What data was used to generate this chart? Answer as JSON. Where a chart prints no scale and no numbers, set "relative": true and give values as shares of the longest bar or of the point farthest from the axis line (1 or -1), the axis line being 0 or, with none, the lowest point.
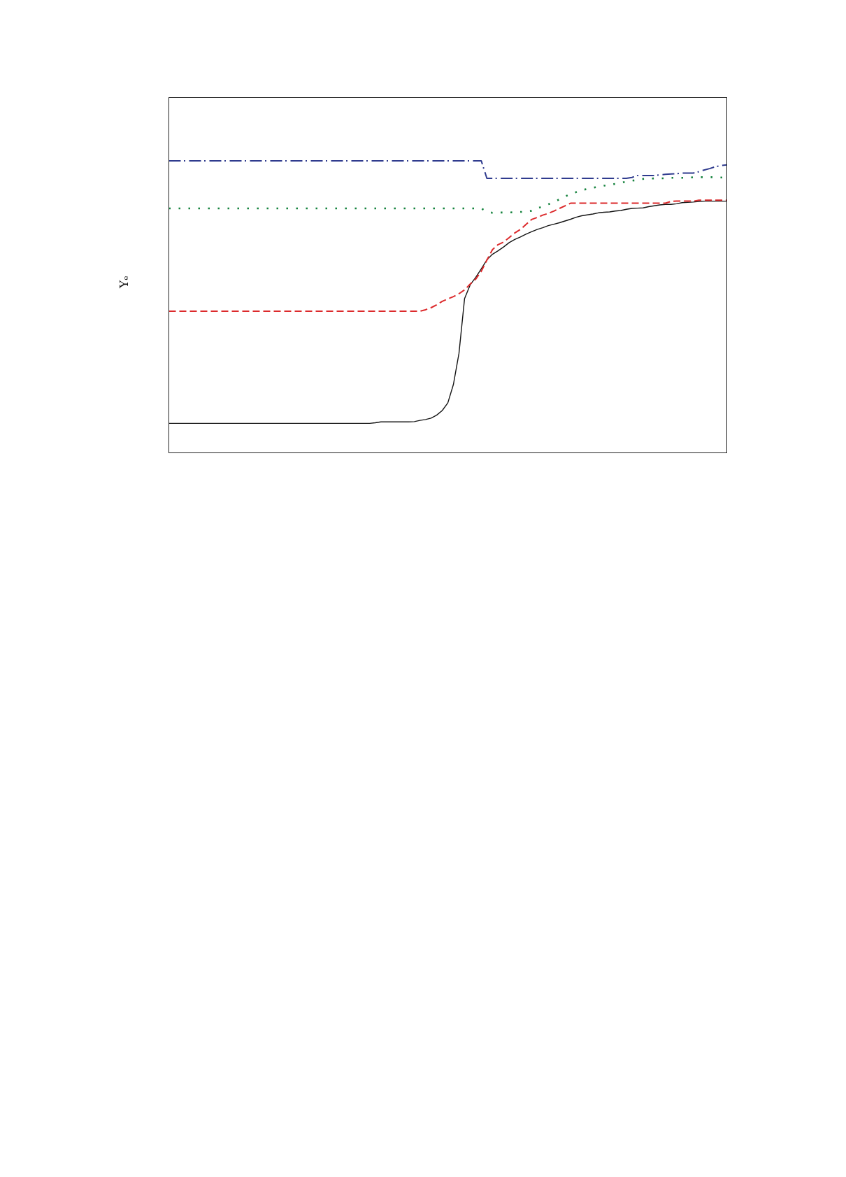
{
  "chart_data": {
    "type": "line",
    "relative": true,
    "ylabel": "Yₑ",
    "categories": [
      null,
      null,
      null,
      null,
      null,
      null,
      null,
      null,
      null,
      null,
      null,
      null,
      null,
      null,
      null,
      null,
      null,
      null,
      null,
      null,
      null,
      null,
      null,
      null,
      null,
      null,
      null,
      null,
      null,
      null,
      null,
      null,
      null,
      null,
      null,
      null,
      null,
      null,
      null,
      null,
      null,
      null,
      null,
      null,
      null,
      null,
      null,
      null,
      null,
      null,
      null,
      null,
      null,
      null,
      null,
      null,
      null,
      null,
      null,
      null,
      null,
      null,
      null,
      null,
      null,
      null,
      null,
      null,
      null,
      null,
      null,
      null,
      null,
      null,
      null,
      null,
      null,
      null,
      null,
      null,
      null,
      null,
      null,
      null,
      null,
      null,
      null,
      null,
      null,
      null,
      null,
      null,
      null,
      null,
      null,
      null,
      null,
      null,
      null,
      null,
      null
    ],
    "series": [
      {
        "color": "#151515",
        "line_style": "solid",
        "values": [
          0.101,
          0.101,
          0.101,
          0.101,
          0.101,
          0.101,
          0.101,
          0.101,
          0.101,
          0.101,
          0.101,
          0.101,
          0.101,
          0.101,
          0.101,
          0.101,
          0.101,
          0.101,
          0.101,
          0.101,
          0.101,
          0.101,
          0.101,
          0.101,
          0.101,
          0.101,
          0.101,
          0.101,
          0.101,
          0.101,
          0.101,
          0.101,
          0.101,
          0.101,
          0.101,
          0.101,
          0.101,
          0.103,
          0.106,
          0.106,
          0.106,
          0.106,
          0.106,
          0.106,
          0.107,
          0.111,
          0.114,
          0.119,
          0.129,
          0.145,
          0.171,
          0.234,
          0.341,
          0.528,
          0.575,
          0.601,
          0.63,
          0.661,
          0.68,
          0.692,
          0.705,
          0.72,
          0.731,
          0.739,
          0.749,
          0.757,
          0.765,
          0.771,
          0.778,
          0.783,
          0.788,
          0.794,
          0.8,
          0.807,
          0.812,
          0.815,
          0.818,
          0.822,
          0.824,
          0.825,
          0.828,
          0.83,
          0.834,
          0.837,
          0.838,
          0.839,
          0.843,
          0.846,
          0.849,
          0.851,
          0.851,
          0.853,
          0.857,
          0.858,
          0.859,
          0.861,
          0.862,
          0.862,
          0.862,
          0.862,
          0.862
        ]
      },
      {
        "color": "#dc2a2c",
        "line_style": "dashed",
        "values": [
          0.485,
          0.485,
          0.485,
          0.485,
          0.485,
          0.485,
          0.485,
          0.485,
          0.485,
          0.485,
          0.485,
          0.485,
          0.485,
          0.485,
          0.485,
          0.485,
          0.485,
          0.485,
          0.485,
          0.485,
          0.485,
          0.485,
          0.485,
          0.485,
          0.485,
          0.485,
          0.485,
          0.485,
          0.485,
          0.485,
          0.485,
          0.485,
          0.485,
          0.485,
          0.485,
          0.485,
          0.485,
          0.485,
          0.485,
          0.485,
          0.485,
          0.485,
          0.485,
          0.485,
          0.485,
          0.485,
          0.49,
          0.497,
          0.507,
          0.519,
          0.527,
          0.535,
          0.545,
          0.558,
          0.578,
          0.595,
          0.622,
          0.66,
          0.696,
          0.713,
          0.722,
          0.737,
          0.753,
          0.765,
          0.782,
          0.799,
          0.806,
          0.814,
          0.82,
          0.828,
          0.837,
          0.846,
          0.855,
          0.855,
          0.855,
          0.855,
          0.855,
          0.855,
          0.855,
          0.855,
          0.855,
          0.855,
          0.855,
          0.855,
          0.855,
          0.855,
          0.855,
          0.855,
          0.855,
          0.855,
          0.861,
          0.862,
          0.862,
          0.862,
          0.862,
          0.865,
          0.865,
          0.865,
          0.865,
          0.865,
          0.865
        ]
      },
      {
        "color": "#17843f",
        "line_style": "dotted",
        "values": [
          0.837,
          0.837,
          0.837,
          0.837,
          0.837,
          0.837,
          0.837,
          0.837,
          0.837,
          0.837,
          0.837,
          0.837,
          0.837,
          0.837,
          0.837,
          0.837,
          0.837,
          0.837,
          0.837,
          0.837,
          0.837,
          0.837,
          0.837,
          0.837,
          0.837,
          0.837,
          0.837,
          0.837,
          0.837,
          0.837,
          0.837,
          0.837,
          0.837,
          0.837,
          0.837,
          0.837,
          0.837,
          0.837,
          0.837,
          0.837,
          0.837,
          0.837,
          0.837,
          0.837,
          0.837,
          0.837,
          0.837,
          0.837,
          0.837,
          0.837,
          0.837,
          0.837,
          0.837,
          0.837,
          0.837,
          0.837,
          0.837,
          0.826,
          0.822,
          0.823,
          0.823,
          0.823,
          0.824,
          0.825,
          0.826,
          0.829,
          0.837,
          0.844,
          0.851,
          0.859,
          0.868,
          0.878,
          0.886,
          0.893,
          0.899,
          0.904,
          0.908,
          0.911,
          0.915,
          0.918,
          0.921,
          0.925,
          0.929,
          0.932,
          0.935,
          0.938,
          0.939,
          0.94,
          0.94,
          0.94,
          0.942,
          0.942,
          0.942,
          0.942,
          0.944,
          0.944,
          0.944,
          0.944,
          0.944,
          0.943,
          0.941
        ]
      },
      {
        "color": "#2f3b8e",
        "line_style": "dashdot",
        "values": [
          1,
          1,
          1,
          1,
          1,
          1,
          1,
          1,
          1,
          1,
          1,
          1,
          1,
          1,
          1,
          1,
          1,
          1,
          1,
          1,
          1,
          1,
          1,
          1,
          1,
          1,
          1,
          1,
          1,
          1,
          1,
          1,
          1,
          1,
          1,
          1,
          1,
          1,
          1,
          1,
          1,
          1,
          1,
          1,
          1,
          1,
          1,
          1,
          1,
          1,
          1,
          1,
          1,
          1,
          1,
          1,
          1,
          0.94,
          0.94,
          0.94,
          0.94,
          0.94,
          0.94,
          0.94,
          0.94,
          0.94,
          0.94,
          0.94,
          0.94,
          0.94,
          0.94,
          0.94,
          0.94,
          0.94,
          0.94,
          0.94,
          0.94,
          0.94,
          0.94,
          0.94,
          0.94,
          0.94,
          0.94,
          0.943,
          0.95,
          0.95,
          0.95,
          0.95,
          0.952,
          0.954,
          0.955,
          0.956,
          0.958,
          0.958,
          0.958,
          0.963,
          0.969,
          0.974,
          0.98,
          0.984,
          0.986
        ]
      }
    ]
  }
}
